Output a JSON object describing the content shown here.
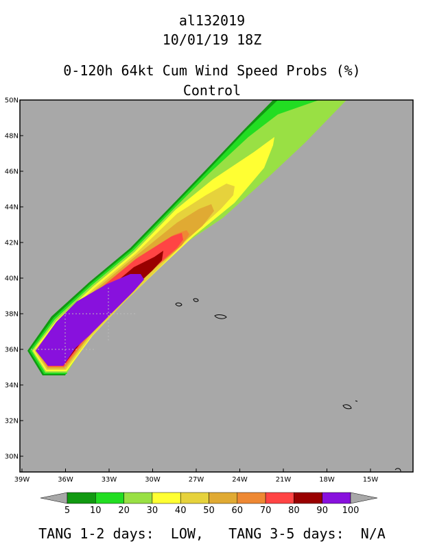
{
  "header": {
    "storm_id": "al132019",
    "datetime": "10/01/19 18Z",
    "product": "0-120h 64kt Cum Wind Speed Probs (%)",
    "member": "Control"
  },
  "map": {
    "background_color": "#a8a8a8",
    "lat_labels": [
      "50N",
      "48N",
      "46N",
      "44N",
      "42N",
      "40N",
      "38N",
      "36N",
      "34N",
      "32N",
      "30N"
    ],
    "lon_labels": [
      "39W",
      "36W",
      "33W",
      "30W",
      "27W",
      "24W",
      "21W",
      "18W",
      "15W"
    ]
  },
  "colorbar": {
    "levels": [
      "5",
      "10",
      "20",
      "30",
      "40",
      "50",
      "60",
      "70",
      "80",
      "90",
      "100"
    ],
    "colors": [
      "#119911",
      "#22dd22",
      "#99e044",
      "#ffff33",
      "#e6d23c",
      "#e0aa33",
      "#ee8833",
      "#ff4444",
      "#990000",
      "#8811dd"
    ],
    "arrow_color": "#a8a8a8"
  },
  "footer": {
    "text": "TANG 1-2 days:  LOW,   TANG 3-5 days:  N/A"
  }
}
